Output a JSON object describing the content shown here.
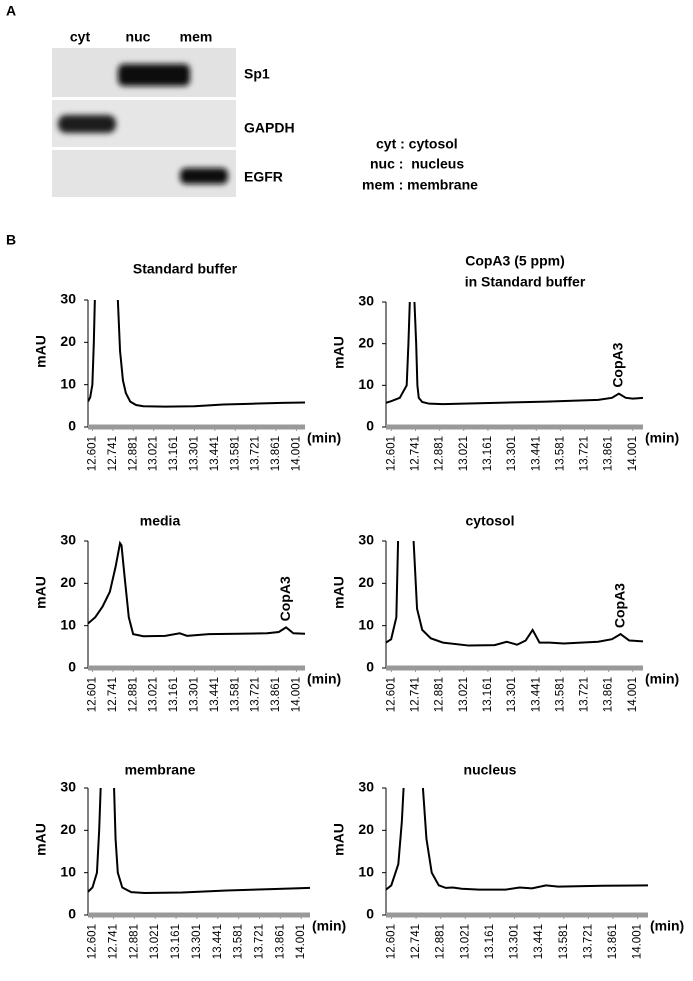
{
  "panel_a": {
    "label": "A",
    "lanes": [
      "cyt",
      "nuc",
      "mem"
    ],
    "rows": [
      "Sp1",
      "GAPDH",
      "EGFR"
    ],
    "legend": [
      "cyt : cytosol",
      "nuc :  nucleus",
      "mem : membrane"
    ]
  },
  "panel_b": {
    "label": "B"
  },
  "chart_data": [
    {
      "type": "line",
      "title": "Standard buffer",
      "ylabel": "mAU",
      "xlabel": "(min)",
      "color": "#000000",
      "x": [
        12.57,
        12.585,
        12.6,
        12.61,
        12.617,
        12.69,
        12.775,
        12.79,
        12.81,
        12.83,
        12.86,
        12.9,
        12.95,
        13.1,
        13.3,
        13.5,
        13.7,
        13.9,
        14.06
      ],
      "values": [
        6,
        7,
        10,
        20,
        30,
        null,
        30,
        18,
        11,
        8,
        6,
        5.2,
        4.9,
        4.8,
        4.9,
        5.3,
        5.5,
        5.7,
        5.8
      ],
      "xlim": [
        12.57,
        14.06
      ],
      "ylim": [
        0,
        30
      ],
      "yticks": [
        0,
        10,
        20,
        30
      ],
      "xticks": [
        12.601,
        12.741,
        12.881,
        13.021,
        13.161,
        13.301,
        13.441,
        13.581,
        13.721,
        13.861,
        14.001
      ],
      "annotations": []
    },
    {
      "type": "line",
      "title": [
        "CopA3 (5 ppm)",
        "in Standard buffer"
      ],
      "ylabel": "mAU",
      "xlabel": "(min)",
      "color": "#000000",
      "x": [
        12.57,
        12.6,
        12.65,
        12.69,
        12.7,
        12.708,
        12.72,
        12.735,
        12.745,
        12.752,
        12.76,
        12.78,
        12.82,
        12.9,
        13.2,
        13.5,
        13.8,
        13.88,
        13.92,
        13.96,
        14.0,
        14.06
      ],
      "values": [
        5.8,
        6.2,
        7,
        10,
        20,
        30,
        null,
        30,
        20,
        10,
        7,
        6,
        5.6,
        5.5,
        5.8,
        6.1,
        6.5,
        7,
        8,
        7,
        6.8,
        7
      ],
      "xlim": [
        12.57,
        14.06
      ],
      "ylim": [
        0,
        30
      ],
      "yticks": [
        0,
        10,
        20,
        30
      ],
      "xticks": [
        12.601,
        12.741,
        12.881,
        13.021,
        13.161,
        13.301,
        13.441,
        13.581,
        13.721,
        13.861,
        14.001
      ],
      "annotations": [
        "CopA3"
      ]
    },
    {
      "type": "line",
      "title": "media",
      "ylabel": "mAU",
      "xlabel": "(min)",
      "color": "#000000",
      "x": [
        12.57,
        12.62,
        12.67,
        12.72,
        12.76,
        12.79,
        12.8,
        12.82,
        12.85,
        12.88,
        12.95,
        13.1,
        13.2,
        13.25,
        13.4,
        13.6,
        13.8,
        13.88,
        13.93,
        13.98,
        14.06
      ],
      "values": [
        10.5,
        12,
        14.5,
        18,
        24,
        29.5,
        29,
        22,
        12,
        8,
        7.5,
        7.6,
        8.2,
        7.6,
        8,
        8.1,
        8.2,
        8.5,
        9.6,
        8.2,
        8.1
      ],
      "xlim": [
        12.57,
        14.06
      ],
      "ylim": [
        0,
        30
      ],
      "yticks": [
        0,
        10,
        20,
        30
      ],
      "xticks": [
        12.601,
        12.741,
        12.881,
        13.021,
        13.161,
        13.301,
        13.441,
        13.581,
        13.721,
        13.861,
        14.001
      ],
      "annotations": [
        "CopA3"
      ]
    },
    {
      "type": "line",
      "title": "cytosol",
      "ylabel": "mAU",
      "xlabel": "(min)",
      "color": "#000000",
      "x": [
        12.57,
        12.6,
        12.63,
        12.64,
        12.7,
        12.73,
        12.75,
        12.78,
        12.83,
        12.9,
        13.05,
        13.2,
        13.27,
        13.33,
        13.38,
        13.42,
        13.46,
        13.52,
        13.6,
        13.8,
        13.88,
        13.93,
        13.98,
        14.06
      ],
      "values": [
        6,
        6.8,
        12,
        30,
        null,
        30,
        14,
        9,
        7,
        6,
        5.3,
        5.4,
        6.2,
        5.5,
        6.5,
        9,
        6,
        6,
        5.8,
        6.2,
        6.8,
        8,
        6.5,
        6.3
      ],
      "xlim": [
        12.57,
        14.06
      ],
      "ylim": [
        0,
        30
      ],
      "yticks": [
        0,
        10,
        20,
        30
      ],
      "xticks": [
        12.601,
        12.741,
        12.881,
        13.021,
        13.161,
        13.301,
        13.441,
        13.581,
        13.721,
        13.861,
        14.001
      ],
      "annotations": [
        "CopA3"
      ]
    },
    {
      "type": "line",
      "title": "membrane",
      "ylabel": "mAU",
      "xlabel": "(min)",
      "color": "#000000",
      "x": [
        12.57,
        12.6,
        12.63,
        12.645,
        12.655,
        12.7,
        12.745,
        12.755,
        12.77,
        12.8,
        12.86,
        12.95,
        13.2,
        13.5,
        13.8,
        14.06
      ],
      "values": [
        5.5,
        6.5,
        10,
        20,
        30,
        null,
        30,
        18,
        10,
        6.5,
        5.4,
        5.2,
        5.3,
        5.8,
        6.1,
        6.4
      ],
      "xlim": [
        12.57,
        14.06
      ],
      "ylim": [
        0,
        30
      ],
      "yticks": [
        0,
        10,
        20,
        30
      ],
      "xticks": [
        12.601,
        12.741,
        12.881,
        13.021,
        13.161,
        13.301,
        13.441,
        13.581,
        13.721,
        13.861,
        14.001
      ],
      "annotations": []
    },
    {
      "type": "line",
      "title": "nucleus",
      "ylabel": "mAU",
      "xlabel": "(min)",
      "color": "#000000",
      "x": [
        12.57,
        12.6,
        12.64,
        12.66,
        12.67,
        12.72,
        12.78,
        12.8,
        12.83,
        12.87,
        12.91,
        12.95,
        13.0,
        13.1,
        13.25,
        13.33,
        13.4,
        13.48,
        13.55,
        13.8,
        14.06
      ],
      "values": [
        6,
        7,
        12,
        22,
        30,
        null,
        30,
        18,
        10,
        7,
        6.4,
        6.5,
        6.2,
        6,
        6,
        6.5,
        6.3,
        7,
        6.7,
        6.9,
        7
      ],
      "xlim": [
        12.57,
        14.06
      ],
      "ylim": [
        0,
        30
      ],
      "yticks": [
        0,
        10,
        20,
        30
      ],
      "xticks": [
        12.601,
        12.741,
        12.881,
        13.021,
        13.161,
        13.301,
        13.441,
        13.581,
        13.721,
        13.861,
        14.001
      ],
      "annotations": []
    }
  ]
}
